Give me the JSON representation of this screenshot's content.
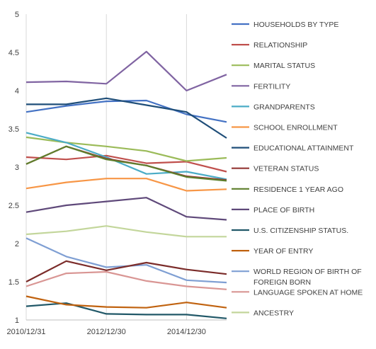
{
  "chart_data": {
    "type": "line",
    "title": "",
    "xlabel": "",
    "ylabel": "",
    "x": [
      "2010/12/31",
      "2011/12/31",
      "2012/12/30",
      "2013/12/30",
      "2014/12/30",
      "2015/12/30"
    ],
    "x_tick_labels": [
      "2010/12/31",
      "2012/12/30",
      "2014/12/30"
    ],
    "ylim": [
      1,
      5
    ],
    "y_ticks": [
      "1",
      "1.5",
      "2",
      "2.5",
      "3",
      "3.5",
      "4",
      "4.5",
      "5"
    ],
    "grid": "vertical gridlines only",
    "legend_position": "right",
    "series": [
      {
        "name": "HOUSEHOLDS BY TYPE",
        "color": "#4472C4",
        "values": [
          3.72,
          3.8,
          3.86,
          3.87,
          3.69,
          3.59
        ]
      },
      {
        "name": "RELATIONSHIP",
        "color": "#C0504D",
        "values": [
          3.13,
          3.1,
          3.15,
          3.05,
          3.07,
          2.94
        ]
      },
      {
        "name": "MARITAL STATUS",
        "color": "#9BBB59",
        "values": [
          3.39,
          3.32,
          3.27,
          3.21,
          3.08,
          3.12
        ]
      },
      {
        "name": "FERTILITY",
        "color": "#8064A2",
        "values": [
          4.11,
          4.12,
          4.09,
          4.51,
          4.0,
          4.21
        ]
      },
      {
        "name": "GRANDPARENTS",
        "color": "#4BACC6",
        "values": [
          3.45,
          3.32,
          3.13,
          2.91,
          2.94,
          2.84
        ]
      },
      {
        "name": "SCHOOL ENROLLMENT",
        "color": "#F79646",
        "values": [
          2.72,
          2.8,
          2.85,
          2.85,
          2.69,
          2.71
        ]
      },
      {
        "name": "EDUCATIONAL ATTAINMENT",
        "color": "#1F4E79",
        "values": [
          3.82,
          3.82,
          3.9,
          3.81,
          3.72,
          3.38
        ]
      },
      {
        "name": "VETERAN STATUS",
        "color": "#943634",
        "values": [
          3.04,
          3.27,
          3.11,
          3.02,
          2.88,
          2.83
        ]
      },
      {
        "name": "RESIDENCE 1 YEAR AGO",
        "color": "#5E7F2C",
        "values": [
          3.04,
          3.27,
          3.1,
          3.02,
          2.87,
          2.82
        ]
      },
      {
        "name": "PLACE OF BIRTH",
        "color": "#5F497A",
        "values": [
          2.41,
          2.5,
          2.55,
          2.6,
          2.35,
          2.31
        ]
      },
      {
        "name": "U.S. CITIZENSHIP STATUS.",
        "color": "#215868",
        "values": [
          1.18,
          1.22,
          1.08,
          1.07,
          1.07,
          1.02
        ]
      },
      {
        "name": "YEAR OF ENTRY",
        "color": "#C0620F",
        "values": [
          1.31,
          1.2,
          1.17,
          1.16,
          1.23,
          1.16
        ]
      },
      {
        "name": "WORLD REGION OF BIRTH OF FOREIGN BORN",
        "color": "#7F9FD3",
        "values": [
          2.07,
          1.83,
          1.69,
          1.72,
          1.52,
          1.49
        ]
      },
      {
        "name": "LANGUAGE SPOKEN AT HOME",
        "color": "#D99694",
        "values": [
          1.44,
          1.61,
          1.63,
          1.51,
          1.44,
          1.4
        ]
      },
      {
        "name": "ANCESTRY",
        "color": "#C3D69B",
        "values": [
          2.12,
          2.16,
          2.23,
          2.15,
          2.09,
          2.09
        ]
      },
      {
        "name": "",
        "color": "#7B2C2A",
        "values": [
          1.5,
          1.77,
          1.65,
          1.75,
          1.66,
          1.6
        ]
      }
    ]
  }
}
